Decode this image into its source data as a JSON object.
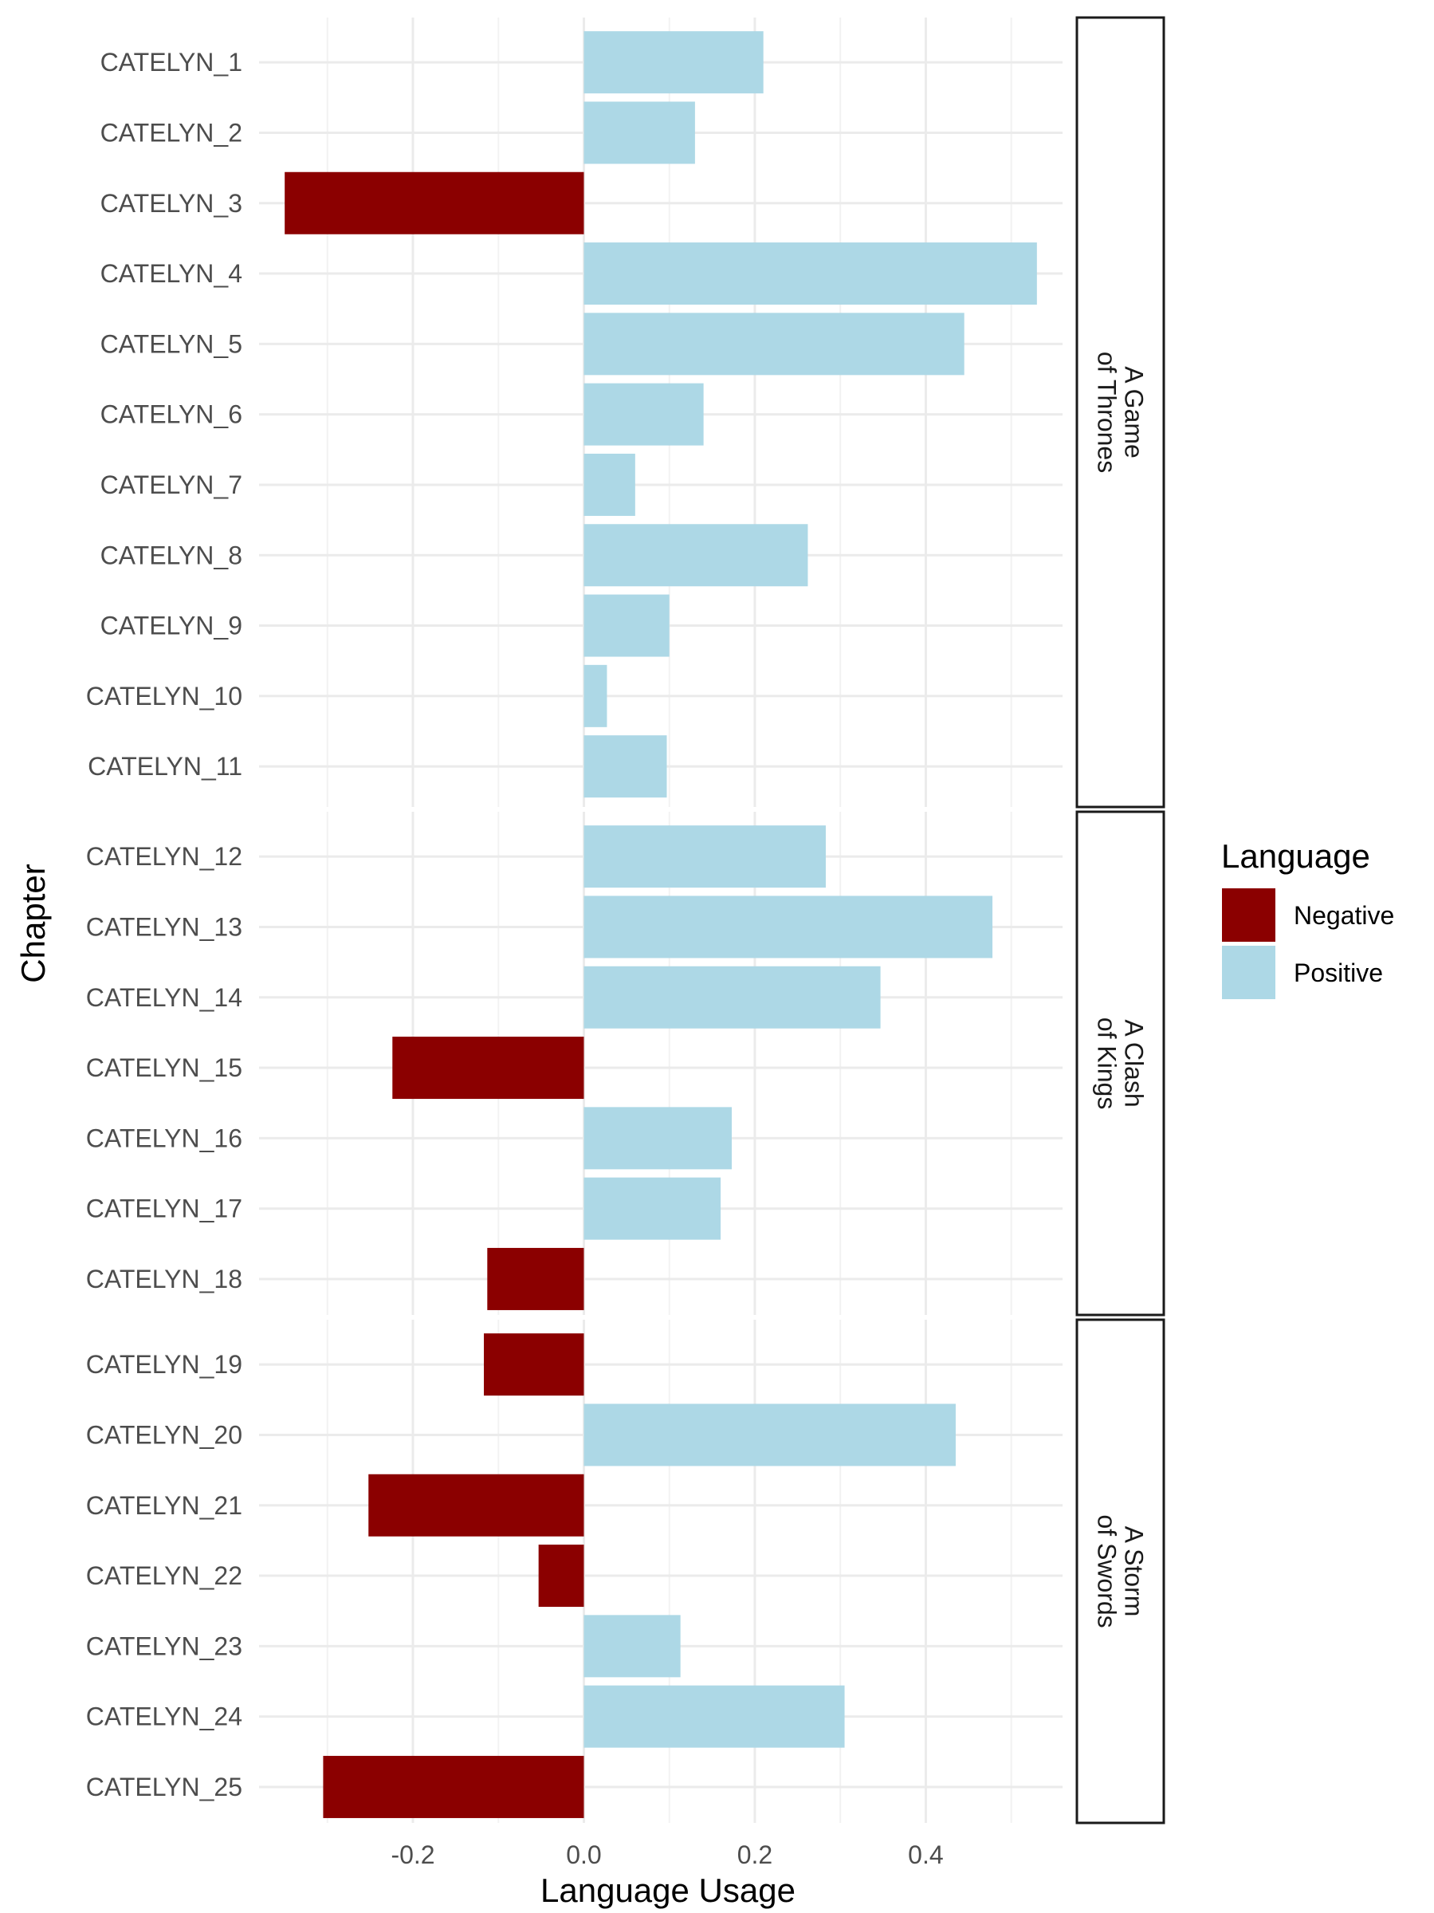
{
  "chart_data": {
    "type": "bar",
    "orientation": "horizontal",
    "xlabel": "Language Usage",
    "ylabel": "Chapter",
    "xlim": [
      -0.38,
      0.56
    ],
    "x_ticks": [
      -0.2,
      0.0,
      0.2,
      0.4
    ],
    "x_tick_labels": [
      "-0.2",
      "0.0",
      "0.2",
      "0.4"
    ],
    "grid": true,
    "legend": {
      "title": "Language",
      "placement": "right",
      "entries": [
        {
          "label": "Negative",
          "color": "#8b0000"
        },
        {
          "label": "Positive",
          "color": "#add8e6"
        }
      ]
    },
    "colors": {
      "Negative": "#8b0000",
      "Positive": "#add8e6"
    },
    "facets": [
      {
        "label_lines": [
          "A Game",
          "of Thrones"
        ],
        "categories": [
          "CATELYN_1",
          "CATELYN_2",
          "CATELYN_3",
          "CATELYN_4",
          "CATELYN_5",
          "CATELYN_6",
          "CATELYN_7",
          "CATELYN_8",
          "CATELYN_9",
          "CATELYN_10",
          "CATELYN_11"
        ],
        "values": [
          0.21,
          0.13,
          -0.35,
          0.53,
          0.445,
          0.14,
          0.06,
          0.262,
          0.1,
          0.027,
          0.097
        ]
      },
      {
        "label_lines": [
          "A Clash",
          "of Kings"
        ],
        "categories": [
          "CATELYN_12",
          "CATELYN_13",
          "CATELYN_14",
          "CATELYN_15",
          "CATELYN_16",
          "CATELYN_17",
          "CATELYN_18"
        ],
        "values": [
          0.283,
          0.478,
          0.347,
          -0.224,
          0.173,
          0.16,
          -0.113
        ]
      },
      {
        "label_lines": [
          "A Storm",
          "of Swords"
        ],
        "categories": [
          "CATELYN_19",
          "CATELYN_20",
          "CATELYN_21",
          "CATELYN_22",
          "CATELYN_23",
          "CATELYN_24",
          "CATELYN_25"
        ],
        "values": [
          -0.117,
          0.435,
          -0.252,
          -0.053,
          0.113,
          0.305,
          -0.305
        ]
      }
    ]
  }
}
